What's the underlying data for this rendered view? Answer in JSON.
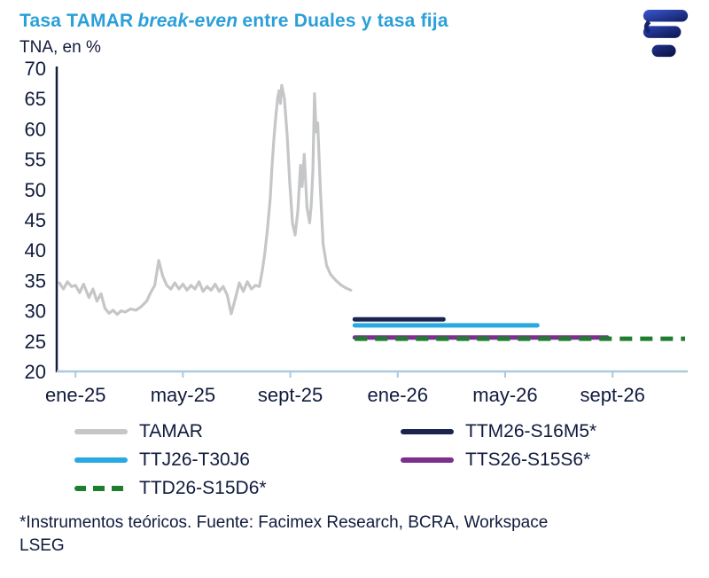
{
  "header": {
    "title_pre": "Tasa TAMAR",
    "title_italic": "break-even",
    "title_post": "entre Duales y tasa fija",
    "subtitle": "TNA, en %"
  },
  "icons": {
    "brand_logo": "facimex-logo"
  },
  "footnote": {
    "line1": "*Instrumentos teóricos. Fuente: Facimex Research, BCRA, Workspace",
    "line2": "LSEG"
  },
  "colors": {
    "title_blue": "#2a9fd8",
    "text_navy": "#101b3d",
    "y_axis": "#13203f",
    "x_axis": "#abc9df"
  },
  "chart_data": {
    "type": "line",
    "title": "Tasa TAMAR break-even entre Duales y tasa fija",
    "subtitle_unit": "TNA, en %",
    "ylim": [
      20,
      70
    ],
    "ytick_step": 5,
    "xlim": [
      -0.7,
      22.8
    ],
    "x_unit": "months (0 = ene-25)",
    "grid": "off",
    "legend_position": "bottom",
    "legend_columns": 2,
    "xticks": [
      {
        "pos": 0,
        "label": "ene-25"
      },
      {
        "pos": 4,
        "label": "may-25"
      },
      {
        "pos": 8,
        "label": "sept-25"
      },
      {
        "pos": 12,
        "label": "ene-26"
      },
      {
        "pos": 16,
        "label": "may-26"
      },
      {
        "pos": 20,
        "label": "sept-26"
      }
    ],
    "series": [
      {
        "name": "TAMAR",
        "color": "#c5c6c8",
        "style": "solid",
        "width": 3.2,
        "points": [
          [
            -0.6,
            34.6
          ],
          [
            -0.45,
            33.6
          ],
          [
            -0.3,
            34.8
          ],
          [
            -0.15,
            34.0
          ],
          [
            0,
            34.2
          ],
          [
            0.15,
            33.0
          ],
          [
            0.3,
            34.4
          ],
          [
            0.5,
            32.2
          ],
          [
            0.65,
            33.6
          ],
          [
            0.8,
            31.6
          ],
          [
            0.95,
            32.8
          ],
          [
            1.1,
            30.4
          ],
          [
            1.25,
            29.6
          ],
          [
            1.4,
            30.1
          ],
          [
            1.55,
            29.4
          ],
          [
            1.7,
            30.0
          ],
          [
            1.85,
            29.8
          ],
          [
            2.05,
            30.3
          ],
          [
            2.25,
            30.1
          ],
          [
            2.45,
            30.7
          ],
          [
            2.65,
            31.6
          ],
          [
            2.8,
            33.0
          ],
          [
            2.95,
            34.2
          ],
          [
            3.1,
            38.3
          ],
          [
            3.25,
            35.7
          ],
          [
            3.4,
            34.2
          ],
          [
            3.55,
            33.6
          ],
          [
            3.7,
            34.6
          ],
          [
            3.85,
            33.6
          ],
          [
            4.0,
            34.4
          ],
          [
            4.15,
            33.4
          ],
          [
            4.3,
            34.2
          ],
          [
            4.45,
            33.6
          ],
          [
            4.6,
            34.8
          ],
          [
            4.75,
            33.2
          ],
          [
            4.9,
            34.0
          ],
          [
            5.05,
            33.4
          ],
          [
            5.2,
            34.4
          ],
          [
            5.35,
            33.2
          ],
          [
            5.5,
            34.0
          ],
          [
            5.65,
            32.6
          ],
          [
            5.8,
            29.5
          ],
          [
            5.95,
            32.0
          ],
          [
            6.1,
            34.6
          ],
          [
            6.25,
            33.2
          ],
          [
            6.4,
            34.8
          ],
          [
            6.55,
            33.6
          ],
          [
            6.7,
            34.2
          ],
          [
            6.85,
            34.0
          ],
          [
            6.95,
            36.5
          ],
          [
            7.05,
            39.5
          ],
          [
            7.15,
            43.5
          ],
          [
            7.25,
            48.5
          ],
          [
            7.32,
            54.0
          ],
          [
            7.4,
            59.0
          ],
          [
            7.47,
            62.5
          ],
          [
            7.53,
            65.2
          ],
          [
            7.58,
            66.3
          ],
          [
            7.63,
            64.2
          ],
          [
            7.68,
            67.2
          ],
          [
            7.78,
            65.0
          ],
          [
            7.88,
            59.0
          ],
          [
            7.98,
            51.0
          ],
          [
            8.08,
            44.5
          ],
          [
            8.18,
            42.5
          ],
          [
            8.28,
            46.5
          ],
          [
            8.38,
            54.0
          ],
          [
            8.44,
            50.5
          ],
          [
            8.52,
            55.8
          ],
          [
            8.62,
            47.0
          ],
          [
            8.72,
            44.5
          ],
          [
            8.78,
            47.5
          ],
          [
            8.84,
            53.0
          ],
          [
            8.9,
            65.8
          ],
          [
            8.96,
            59.5
          ],
          [
            9.02,
            61.0
          ],
          [
            9.12,
            50.0
          ],
          [
            9.22,
            41.0
          ],
          [
            9.35,
            37.5
          ],
          [
            9.5,
            36.0
          ],
          [
            9.7,
            35.0
          ],
          [
            9.9,
            34.2
          ],
          [
            10.1,
            33.7
          ],
          [
            10.25,
            33.4
          ]
        ]
      },
      {
        "name": "TTM26-S16M5*",
        "color": "#1b2450",
        "style": "solid",
        "width": 5,
        "points": [
          [
            10.4,
            28.6
          ],
          [
            13.7,
            28.6
          ]
        ]
      },
      {
        "name": "TTJ26-T30J6",
        "color": "#29a9e1",
        "style": "solid",
        "width": 5,
        "points": [
          [
            10.4,
            27.6
          ],
          [
            17.2,
            27.6
          ]
        ]
      },
      {
        "name": "TTS26-S15S6*",
        "color": "#7d2f90",
        "style": "solid",
        "width": 5,
        "points": [
          [
            10.4,
            25.6
          ],
          [
            19.8,
            25.6
          ]
        ]
      },
      {
        "name": "TTD26-S15D6*",
        "color": "#1e7d2e",
        "style": "dashed",
        "width": 5,
        "points": [
          [
            10.4,
            25.4
          ],
          [
            22.7,
            25.4
          ]
        ]
      }
    ]
  }
}
